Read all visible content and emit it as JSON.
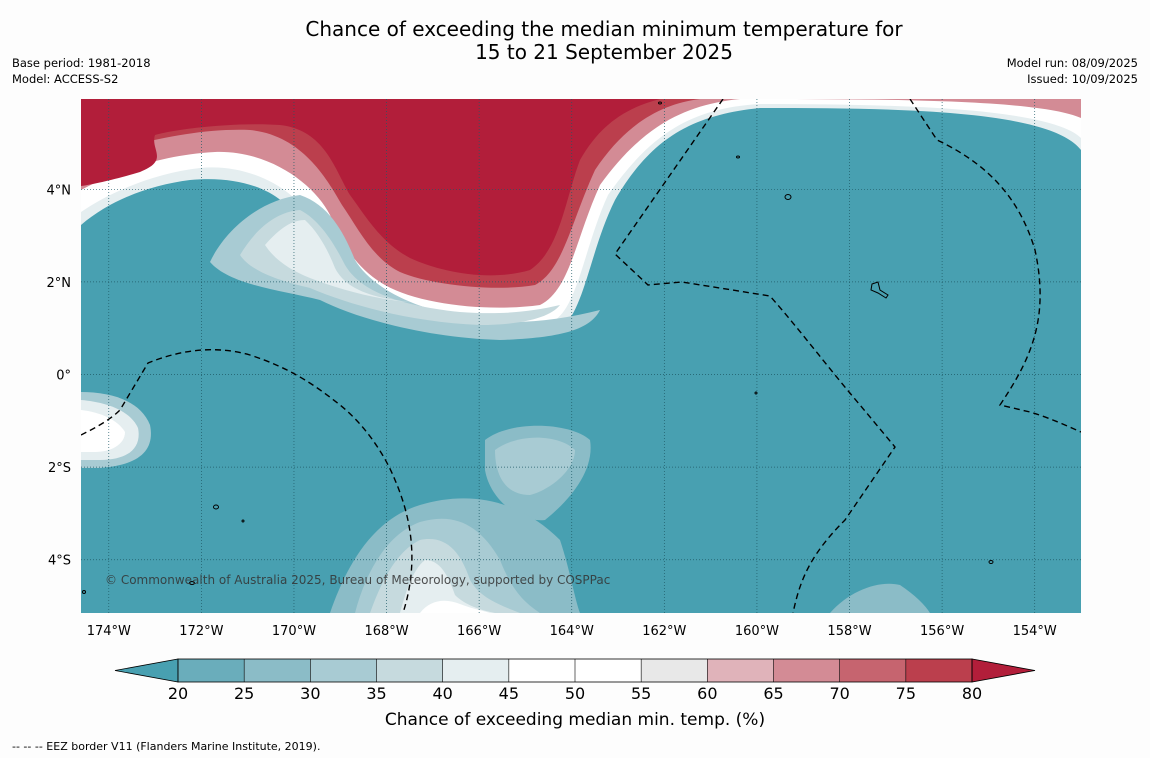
{
  "title": {
    "line1": "Chance of exceeding the median minimum temperature for",
    "line2": "15 to 21 September 2025"
  },
  "meta_left": {
    "base_period": "Base period: 1981-2018",
    "model": "Model: ACCESS-S2"
  },
  "meta_right": {
    "model_run": "Model run: 08/09/2025",
    "issued": "Issued: 10/09/2025"
  },
  "map": {
    "lat_labels": [
      "4°N",
      "2°N",
      "0°",
      "2°S",
      "4°S"
    ],
    "lat_values": [
      4,
      2,
      0,
      -2,
      -4
    ],
    "lon_labels": [
      "174°W",
      "172°W",
      "170°W",
      "168°W",
      "166°W",
      "164°W",
      "162°W",
      "160°W",
      "158°W",
      "156°W",
      "154°W"
    ],
    "lon_values": [
      -174,
      -172,
      -170,
      -168,
      -166,
      -164,
      -162,
      -160,
      -158,
      -156,
      -154
    ],
    "copyright": "© Commonwealth of Australia 2025, Bureau of Meteorology, supported by COSPPac",
    "background_color": "#48a0b1"
  },
  "colorbar": {
    "ticks": [
      "20",
      "25",
      "30",
      "35",
      "40",
      "45",
      "50",
      "55",
      "60",
      "65",
      "70",
      "75",
      "80"
    ],
    "colors": [
      "#48a0b1",
      "#6aadbb",
      "#8bbcc7",
      "#a8cbd3",
      "#c6dade",
      "#e5eef0",
      "#ffffff",
      "#ffffff",
      "#e8e8e8",
      "#e0b3ba",
      "#d38b95",
      "#c6646f",
      "#bb3f4d",
      "#b21e3a"
    ],
    "label": "Chance of exceeding median min. temp. (%)"
  },
  "footnote": "--  --  -- EEZ border V11 (Flanders Marine Institute, 2019)."
}
